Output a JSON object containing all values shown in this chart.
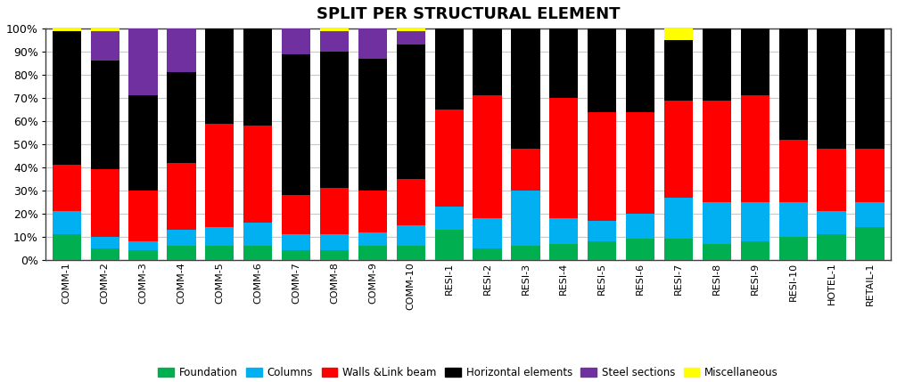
{
  "title": "SPLIT PER STRUCTURAL ELEMENT",
  "categories": [
    "COMM-1",
    "COMM-2",
    "COMM-3",
    "COMM-4",
    "COMM-5",
    "COMM-6",
    "COMM-7",
    "COMM-8",
    "COMM-9",
    "COMM-10",
    "RESI-1",
    "RESI-2",
    "RESI-3",
    "RESI-4",
    "RESI-5",
    "RESI-6",
    "RESI-7",
    "RESI-8",
    "RESI-9",
    "RESI-10",
    "HOTEL-1",
    "RETAIL-1"
  ],
  "series": {
    "Foundation": [
      0.11,
      0.05,
      0.04,
      0.06,
      0.06,
      0.06,
      0.04,
      0.04,
      0.06,
      0.06,
      0.13,
      0.05,
      0.06,
      0.07,
      0.08,
      0.09,
      0.09,
      0.07,
      0.08,
      0.1,
      0.11,
      0.14
    ],
    "Columns": [
      0.1,
      0.05,
      0.04,
      0.07,
      0.08,
      0.1,
      0.07,
      0.07,
      0.06,
      0.09,
      0.1,
      0.13,
      0.24,
      0.11,
      0.09,
      0.11,
      0.18,
      0.18,
      0.17,
      0.15,
      0.1,
      0.11
    ],
    "Walls &Link beam": [
      0.2,
      0.29,
      0.22,
      0.29,
      0.45,
      0.42,
      0.17,
      0.2,
      0.18,
      0.2,
      0.42,
      0.53,
      0.18,
      0.52,
      0.47,
      0.44,
      0.42,
      0.44,
      0.46,
      0.27,
      0.27,
      0.23
    ],
    "Horizontal elements": [
      0.58,
      0.47,
      0.41,
      0.39,
      0.41,
      0.42,
      0.61,
      0.59,
      0.57,
      0.58,
      0.35,
      0.29,
      0.52,
      0.3,
      0.36,
      0.36,
      0.26,
      0.31,
      0.29,
      0.48,
      0.52,
      0.52
    ],
    "Steel sections": [
      0.0,
      0.13,
      0.29,
      0.19,
      0.0,
      0.0,
      0.11,
      0.09,
      0.13,
      0.06,
      0.0,
      0.0,
      0.0,
      0.0,
      0.0,
      0.0,
      0.0,
      0.0,
      0.0,
      0.0,
      0.0,
      0.0
    ],
    "Miscellaneous": [
      0.01,
      0.01,
      0.0,
      0.0,
      0.0,
      0.0,
      0.0,
      0.01,
      0.0,
      0.01,
      0.0,
      0.0,
      0.0,
      0.0,
      0.0,
      0.0,
      0.05,
      0.0,
      0.0,
      0.0,
      0.0,
      0.0
    ]
  },
  "colors": {
    "Foundation": "#00b050",
    "Columns": "#00b0f0",
    "Walls &Link beam": "#ff0000",
    "Horizontal elements": "#000000",
    "Steel sections": "#7030a0",
    "Miscellaneous": "#ffff00"
  },
  "background_color": "#ffffff",
  "plot_background": "#ffffff",
  "border_color": "#404040",
  "grid_color": "#c8c8c8",
  "ylim": [
    0,
    1.0
  ],
  "yticks": [
    0.0,
    0.1,
    0.2,
    0.3,
    0.4,
    0.5,
    0.6,
    0.7,
    0.8,
    0.9,
    1.0
  ],
  "yticklabels": [
    "0%",
    "10%",
    "20%",
    "30%",
    "40%",
    "50%",
    "60%",
    "70%",
    "80%",
    "90%",
    "100%"
  ]
}
